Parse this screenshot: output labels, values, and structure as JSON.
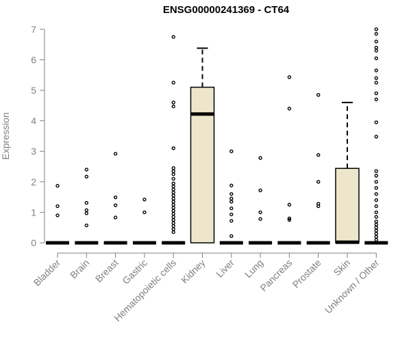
{
  "chart_data": {
    "type": "box",
    "title": "ENSG00000241369 - CT64",
    "xlabel": "",
    "ylabel": "Expression",
    "ylim": [
      0,
      7
    ],
    "yticks": [
      0,
      1,
      2,
      3,
      4,
      5,
      6,
      7
    ],
    "grid": false,
    "colors": {
      "box_fill": "#ede6cc",
      "outline": "#000000",
      "axis": "#7f7f7f"
    },
    "categories": [
      "Bladder",
      "Brain",
      "Breast",
      "Gastric",
      "Hematopoietic cells",
      "Kidney",
      "Liver",
      "Lung",
      "Pancreas",
      "Prostate",
      "Skin",
      "Unknown / Other"
    ],
    "boxes": [
      {
        "q1": 0,
        "median": 0,
        "q3": 0,
        "whisker_low": 0,
        "whisker_high": 0,
        "outliers": [
          0.9,
          1.2,
          1.87
        ]
      },
      {
        "q1": 0,
        "median": 0,
        "q3": 0,
        "whisker_low": 0,
        "whisker_high": 0,
        "outliers": [
          0.57,
          0.97,
          1.07,
          1.31,
          2.17,
          2.4
        ]
      },
      {
        "q1": 0,
        "median": 0,
        "q3": 0,
        "whisker_low": 0,
        "whisker_high": 0,
        "outliers": [
          0.83,
          1.23,
          1.49,
          2.92
        ]
      },
      {
        "q1": 0,
        "median": 0,
        "q3": 0,
        "whisker_low": 0,
        "whisker_high": 0,
        "outliers": [
          1.0,
          1.42
        ]
      },
      {
        "q1": 0,
        "median": 0,
        "q3": 0,
        "whisker_low": 0,
        "whisker_high": 0,
        "outliers": [
          0.35,
          0.45,
          0.55,
          0.65,
          0.75,
          0.85,
          0.95,
          1.05,
          1.15,
          1.25,
          1.35,
          1.45,
          1.55,
          1.65,
          1.75,
          1.85,
          1.95,
          2.1,
          2.25,
          2.35,
          2.45,
          3.1,
          4.47,
          4.6,
          5.25,
          6.75
        ]
      },
      {
        "q1": 0,
        "median": 4.22,
        "q3": 5.1,
        "whisker_low": 0,
        "whisker_high": 6.38,
        "outliers": []
      },
      {
        "q1": 0,
        "median": 0,
        "q3": 0,
        "whisker_low": 0,
        "whisker_high": 0,
        "outliers": [
          0.22,
          0.72,
          0.93,
          1.13,
          1.35,
          1.45,
          1.6,
          1.88,
          3.0
        ]
      },
      {
        "q1": 0,
        "median": 0,
        "q3": 0,
        "whisker_low": 0,
        "whisker_high": 0,
        "outliers": [
          0.78,
          1.0,
          1.72,
          2.78
        ]
      },
      {
        "q1": 0,
        "median": 0,
        "q3": 0,
        "whisker_low": 0,
        "whisker_high": 0,
        "outliers": [
          0.75,
          0.8,
          1.25,
          4.4,
          5.43
        ]
      },
      {
        "q1": 0,
        "median": 0,
        "q3": 0,
        "whisker_low": 0,
        "whisker_high": 0,
        "outliers": [
          1.2,
          1.28,
          2.0,
          2.88,
          4.85
        ]
      },
      {
        "q1": 0,
        "median": 0.02,
        "q3": 2.44,
        "whisker_low": 0,
        "whisker_high": 4.6,
        "outliers": []
      },
      {
        "q1": 0,
        "median": 0,
        "q3": 0,
        "whisker_low": 0,
        "whisker_high": 0,
        "outliers": [
          0.1,
          0.2,
          0.3,
          0.4,
          0.5,
          0.6,
          0.7,
          0.85,
          1.0,
          1.2,
          1.4,
          1.6,
          1.8,
          2.0,
          2.2,
          2.35,
          3.48,
          3.95,
          4.7,
          4.9,
          5.25,
          5.4,
          5.65,
          6.05,
          6.3,
          6.4,
          6.6,
          6.85,
          7.0
        ]
      }
    ]
  }
}
